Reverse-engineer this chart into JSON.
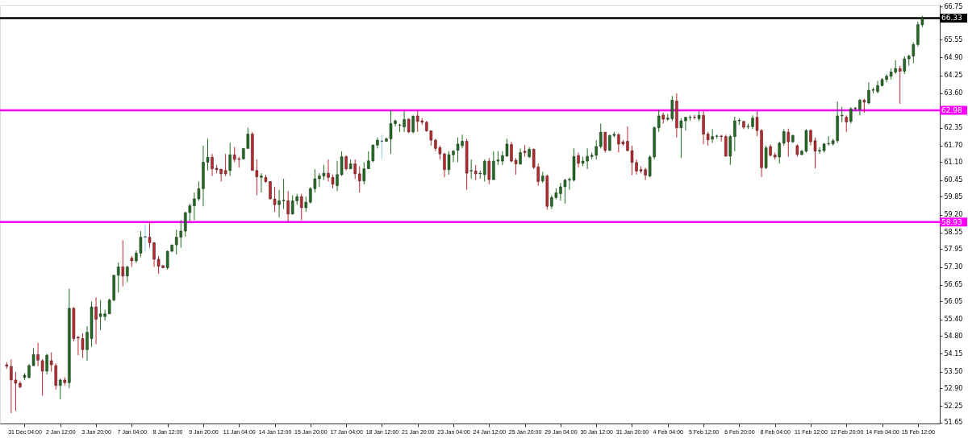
{
  "chart_data": {
    "type": "candlestick",
    "categories": [
      null,
      null,
      null,
      null,
      "31 Dec 04:00",
      null,
      null,
      null,
      null,
      null,
      null,
      null,
      "2 Jan 12:00",
      null,
      null,
      null,
      null,
      null,
      null,
      null,
      "3 Jan 20:00",
      null,
      null,
      null,
      null,
      null,
      null,
      null,
      "7 Jan 04:00",
      null,
      null,
      null,
      null,
      null,
      null,
      null,
      "8 Jan 12:00",
      null,
      null,
      null,
      null,
      null,
      null,
      null,
      "9 Jan 20:00",
      null,
      null,
      null,
      null,
      null,
      null,
      null,
      "11 Jan 04:00",
      null,
      null,
      null,
      null,
      null,
      null,
      null,
      "14 Jan 12:00",
      null,
      null,
      null,
      null,
      null,
      null,
      null,
      "15 Jan 20:00",
      null,
      null,
      null,
      null,
      null,
      null,
      null,
      "17 Jan 04:00",
      null,
      null,
      null,
      null,
      null,
      null,
      null,
      "18 Jan 12:00",
      null,
      null,
      null,
      null,
      null,
      null,
      null,
      "21 Jan 20:00",
      null,
      null,
      null,
      null,
      null,
      null,
      null,
      "23 Jan 04:00",
      null,
      null,
      null,
      null,
      null,
      null,
      null,
      "24 Jan 12:00",
      null,
      null,
      null,
      null,
      null,
      null,
      null,
      "25 Jan 20:00",
      null,
      null,
      null,
      null,
      null,
      null,
      null,
      "29 Jan 04:00",
      null,
      null,
      null,
      null,
      null,
      null,
      null,
      "30 Jan 12:00",
      null,
      null,
      null,
      null,
      null,
      null,
      null,
      "31 Jan 20:00",
      null,
      null,
      null,
      null,
      null,
      null,
      null,
      "4 Feb 04:00",
      null,
      null,
      null,
      null,
      null,
      null,
      null,
      "5 Feb 12:00",
      null,
      null,
      null,
      null,
      null,
      null,
      null,
      "6 Feb 20:00",
      null,
      null,
      null,
      null,
      null,
      null,
      null,
      "8 Feb 04:00",
      null,
      null,
      null,
      null,
      null,
      null,
      null,
      "11 Feb 12:00",
      null,
      null,
      null,
      null,
      null,
      null,
      null,
      "12 Feb 20:00",
      null,
      null,
      null,
      null,
      null,
      null,
      null,
      "14 Feb 04:00",
      null,
      null,
      null,
      null,
      null,
      null,
      null,
      "15 Feb 12:00",
      null
    ],
    "ohlc": [
      [
        53.75,
        53.85,
        53.6,
        53.7
      ],
      [
        53.69,
        53.95,
        52.0,
        53.2
      ],
      [
        53.2,
        53.5,
        52.08,
        53.08
      ],
      [
        53.08,
        53.15,
        52.9,
        52.95
      ],
      [
        53.29,
        53.45,
        53.2,
        53.37
      ],
      [
        53.29,
        53.78,
        53.25,
        53.72
      ],
      [
        53.72,
        54.35,
        53.7,
        54.12
      ],
      [
        54.12,
        54.55,
        53.7,
        53.92
      ],
      [
        53.9,
        53.95,
        52.63,
        53.52
      ],
      [
        53.52,
        54.15,
        53.4,
        54.1
      ],
      [
        53.9,
        54.2,
        53.5,
        53.75
      ],
      [
        53.72,
        53.8,
        52.85,
        53.0
      ],
      [
        53.0,
        53.25,
        52.5,
        53.2
      ],
      [
        53.2,
        53.3,
        53.0,
        53.1
      ],
      [
        53.1,
        56.51,
        52.9,
        55.8
      ],
      [
        55.8,
        55.85,
        54.6,
        54.7
      ],
      [
        54.75,
        54.8,
        54.1,
        54.72
      ],
      [
        54.7,
        54.9,
        54.0,
        54.3
      ],
      [
        54.3,
        55.15,
        53.9,
        54.93
      ],
      [
        54.7,
        56.05,
        54.4,
        55.85
      ],
      [
        55.85,
        56.2,
        54.5,
        55.4
      ],
      [
        55.5,
        56.1,
        55.0,
        55.6
      ],
      [
        55.5,
        55.75,
        55.35,
        55.6
      ],
      [
        55.6,
        56.15,
        55.6,
        56.1
      ],
      [
        56.1,
        57.0,
        56.05,
        57.0
      ],
      [
        57.0,
        57.46,
        56.37,
        57.3
      ],
      [
        57.3,
        58.27,
        56.6,
        56.97
      ],
      [
        56.97,
        57.35,
        56.75,
        57.3
      ],
      [
        57.62,
        57.7,
        57.3,
        57.52
      ],
      [
        57.52,
        57.9,
        57.45,
        57.8
      ],
      [
        57.8,
        58.6,
        57.65,
        58.38
      ],
      [
        58.38,
        58.85,
        57.85,
        58.4
      ],
      [
        58.38,
        58.93,
        58.0,
        58.18
      ],
      [
        58.18,
        58.2,
        57.3,
        57.58
      ],
      [
        57.58,
        57.7,
        57.05,
        57.32
      ],
      [
        57.35,
        57.35,
        57.25,
        57.27
      ],
      [
        57.27,
        57.9,
        57.2,
        57.87
      ],
      [
        57.87,
        58.1,
        57.85,
        58.1
      ],
      [
        58.1,
        58.65,
        57.75,
        58.38
      ],
      [
        58.38,
        59.0,
        58.0,
        58.6
      ],
      [
        58.6,
        59.3,
        58.4,
        59.27
      ],
      [
        59.27,
        59.6,
        58.95,
        59.52
      ],
      [
        59.52,
        60.0,
        59.0,
        59.77
      ],
      [
        59.77,
        60.4,
        59.7,
        60.14
      ],
      [
        60.14,
        61.7,
        59.5,
        61.1
      ],
      [
        61.1,
        61.95,
        60.8,
        61.28
      ],
      [
        61.28,
        61.4,
        60.6,
        60.86
      ],
      [
        60.88,
        61.0,
        60.7,
        60.83
      ],
      [
        60.85,
        60.85,
        60.4,
        60.68
      ],
      [
        60.8,
        61.4,
        60.6,
        60.68
      ],
      [
        60.8,
        61.8,
        60.6,
        61.37
      ],
      [
        61.37,
        61.65,
        61.1,
        61.2
      ],
      [
        61.22,
        61.3,
        60.9,
        61.2
      ],
      [
        61.22,
        61.6,
        61.2,
        61.6
      ],
      [
        61.6,
        62.35,
        61.6,
        62.12
      ],
      [
        62.12,
        62.2,
        60.8,
        60.8
      ],
      [
        60.8,
        61.2,
        59.9,
        60.57
      ],
      [
        60.55,
        60.7,
        60.0,
        60.6
      ],
      [
        60.55,
        60.65,
        60.35,
        60.4
      ],
      [
        60.4,
        60.4,
        59.75,
        59.77
      ],
      [
        59.77,
        60.2,
        59.3,
        59.56
      ],
      [
        59.56,
        60.1,
        59.1,
        59.7
      ],
      [
        59.7,
        60.5,
        59.4,
        59.72
      ],
      [
        59.7,
        60.05,
        58.95,
        59.22
      ],
      [
        59.22,
        59.9,
        59.2,
        59.7
      ],
      [
        59.7,
        59.95,
        59.55,
        59.85
      ],
      [
        59.85,
        59.95,
        59.0,
        59.45
      ],
      [
        59.45,
        59.85,
        59.3,
        59.65
      ],
      [
        59.65,
        60.2,
        59.6,
        60.14
      ],
      [
        60.14,
        60.85,
        60.0,
        60.5
      ],
      [
        60.5,
        60.7,
        60.2,
        60.6
      ],
      [
        60.6,
        61.0,
        60.45,
        60.7
      ],
      [
        60.7,
        61.2,
        60.4,
        60.55
      ],
      [
        60.55,
        60.65,
        60.15,
        60.3
      ],
      [
        60.25,
        61.15,
        60.05,
        60.65
      ],
      [
        60.65,
        61.5,
        60.6,
        61.3
      ],
      [
        61.3,
        61.35,
        60.8,
        60.86
      ],
      [
        60.86,
        61.2,
        60.85,
        61.04
      ],
      [
        61.04,
        61.2,
        60.5,
        60.68
      ],
      [
        60.68,
        60.95,
        60.0,
        60.42
      ],
      [
        60.42,
        61.1,
        60.3,
        60.86
      ],
      [
        60.86,
        61.5,
        60.85,
        61.15
      ],
      [
        61.15,
        61.75,
        61.1,
        61.72
      ],
      [
        61.72,
        62.0,
        61.6,
        61.9
      ],
      [
        61.86,
        62.1,
        61.2,
        61.87
      ],
      [
        61.86,
        62.0,
        61.85,
        61.95
      ],
      [
        61.95,
        63.0,
        61.4,
        62.5
      ],
      [
        62.5,
        62.65,
        62.4,
        62.6
      ],
      [
        62.44,
        62.5,
        62.2,
        62.45
      ],
      [
        62.38,
        62.95,
        62.2,
        62.65
      ],
      [
        62.66,
        62.7,
        62.15,
        62.2
      ],
      [
        62.2,
        62.8,
        62.15,
        62.77
      ],
      [
        62.78,
        62.95,
        62.2,
        62.58
      ],
      [
        62.6,
        62.7,
        62.45,
        62.55
      ],
      [
        62.55,
        62.6,
        62.2,
        62.24
      ],
      [
        62.24,
        62.24,
        61.7,
        61.9
      ],
      [
        61.9,
        61.95,
        61.5,
        61.6
      ],
      [
        61.63,
        61.7,
        61.2,
        61.4
      ],
      [
        61.4,
        61.45,
        60.55,
        60.83
      ],
      [
        60.83,
        61.5,
        60.65,
        61.37
      ],
      [
        61.37,
        61.55,
        61.1,
        61.5
      ],
      [
        61.53,
        62.0,
        61.1,
        61.76
      ],
      [
        61.7,
        62.1,
        61.6,
        61.86
      ],
      [
        61.86,
        61.95,
        60.1,
        60.7
      ],
      [
        60.78,
        61.2,
        60.5,
        60.8
      ],
      [
        60.78,
        61.0,
        60.45,
        60.68
      ],
      [
        60.68,
        60.8,
        60.5,
        60.7
      ],
      [
        60.65,
        61.2,
        60.4,
        61.14
      ],
      [
        61.14,
        61.25,
        60.3,
        60.47
      ],
      [
        60.47,
        61.5,
        60.45,
        61.14
      ],
      [
        61.14,
        61.5,
        61.0,
        61.18
      ],
      [
        61.14,
        61.5,
        61.0,
        61.34
      ],
      [
        61.32,
        61.95,
        61.3,
        61.76
      ],
      [
        61.74,
        61.85,
        61.1,
        61.14
      ],
      [
        61.17,
        61.25,
        60.65,
        61.04
      ],
      [
        61.04,
        61.6,
        61.0,
        61.45
      ],
      [
        61.5,
        61.72,
        61.3,
        61.45
      ],
      [
        61.3,
        61.65,
        61.25,
        61.57
      ],
      [
        61.57,
        61.6,
        60.85,
        60.91
      ],
      [
        60.93,
        61.05,
        60.25,
        60.4
      ],
      [
        60.42,
        60.75,
        60.35,
        60.6
      ],
      [
        60.6,
        60.65,
        59.38,
        59.5
      ],
      [
        59.5,
        59.9,
        59.4,
        59.82
      ],
      [
        59.82,
        60.15,
        59.75,
        59.99
      ],
      [
        59.96,
        60.35,
        59.7,
        60.21
      ],
      [
        60.21,
        60.5,
        59.6,
        60.45
      ],
      [
        60.45,
        60.55,
        60.1,
        60.48
      ],
      [
        60.45,
        61.6,
        60.4,
        61.31
      ],
      [
        61.34,
        61.45,
        60.9,
        61.06
      ],
      [
        61.06,
        61.3,
        60.95,
        61.14
      ],
      [
        61.14,
        61.6,
        60.85,
        61.31
      ],
      [
        61.31,
        61.45,
        61.2,
        61.35
      ],
      [
        61.35,
        61.9,
        61.2,
        61.67
      ],
      [
        61.67,
        62.5,
        61.6,
        62.19
      ],
      [
        62.19,
        62.2,
        61.45,
        61.53
      ],
      [
        61.53,
        62.1,
        61.5,
        62.07
      ],
      [
        62.07,
        62.2,
        62.0,
        62.11
      ],
      [
        62.1,
        62.15,
        61.45,
        61.76
      ],
      [
        61.84,
        61.9,
        61.7,
        61.76
      ],
      [
        61.86,
        62.4,
        61.5,
        61.52
      ],
      [
        61.52,
        61.7,
        60.63,
        61.09
      ],
      [
        61.09,
        61.2,
        60.65,
        60.78
      ],
      [
        60.83,
        60.95,
        60.7,
        60.78
      ],
      [
        60.83,
        60.9,
        60.45,
        60.63
      ],
      [
        60.6,
        61.35,
        60.55,
        61.29
      ],
      [
        61.29,
        62.4,
        61.2,
        62.35
      ],
      [
        62.35,
        63.0,
        62.2,
        62.78
      ],
      [
        62.81,
        62.9,
        62.5,
        62.66
      ],
      [
        62.66,
        62.85,
        62.6,
        62.7
      ],
      [
        62.68,
        63.5,
        62.6,
        63.35
      ],
      [
        63.32,
        63.6,
        62.0,
        62.35
      ],
      [
        62.35,
        62.7,
        61.25,
        62.6
      ],
      [
        62.6,
        62.75,
        62.25,
        62.73
      ],
      [
        62.72,
        62.8,
        62.6,
        62.73
      ],
      [
        62.73,
        62.82,
        62.65,
        62.72
      ],
      [
        62.68,
        62.95,
        62.6,
        62.8
      ],
      [
        62.8,
        62.95,
        61.75,
        62.12
      ],
      [
        62.12,
        62.2,
        61.7,
        61.91
      ],
      [
        61.94,
        62.3,
        61.8,
        62.03
      ],
      [
        62.04,
        62.1,
        61.95,
        62.05
      ],
      [
        62.05,
        62.1,
        61.85,
        62.03
      ],
      [
        62.03,
        62.1,
        61.3,
        61.32
      ],
      [
        61.32,
        62.1,
        61.0,
        62.03
      ],
      [
        62.03,
        62.75,
        61.5,
        62.6
      ],
      [
        62.6,
        62.7,
        62.45,
        62.62
      ],
      [
        62.58,
        62.6,
        62.3,
        62.37
      ],
      [
        62.39,
        62.5,
        62.3,
        62.4
      ],
      [
        62.39,
        62.8,
        62.3,
        62.7
      ],
      [
        62.73,
        62.95,
        62.05,
        62.25
      ],
      [
        62.25,
        62.3,
        60.57,
        60.9
      ],
      [
        60.9,
        61.7,
        60.85,
        61.62
      ],
      [
        61.67,
        61.75,
        61.3,
        61.35
      ],
      [
        61.36,
        61.45,
        61.2,
        61.29
      ],
      [
        61.29,
        61.85,
        61.05,
        61.79
      ],
      [
        61.79,
        62.3,
        61.7,
        62.21
      ],
      [
        62.19,
        62.32,
        61.3,
        61.84
      ],
      [
        61.84,
        62.1,
        61.8,
        62.07
      ],
      [
        61.7,
        61.75,
        61.3,
        61.38
      ],
      [
        61.38,
        61.55,
        61.35,
        61.5
      ],
      [
        61.5,
        62.3,
        61.45,
        62.25
      ],
      [
        62.25,
        62.3,
        61.7,
        61.84
      ],
      [
        61.88,
        62.0,
        60.88,
        61.5
      ],
      [
        61.5,
        61.65,
        61.4,
        61.53
      ],
      [
        61.52,
        61.8,
        61.45,
        61.76
      ],
      [
        61.77,
        62.05,
        61.7,
        61.78
      ],
      [
        61.77,
        61.95,
        61.7,
        61.88
      ],
      [
        61.88,
        63.3,
        61.8,
        62.78
      ],
      [
        62.78,
        63.1,
        62.55,
        62.8
      ],
      [
        62.73,
        62.8,
        62.2,
        62.56
      ],
      [
        62.58,
        63.1,
        62.5,
        63.04
      ],
      [
        63.04,
        63.1,
        62.95,
        63.06
      ],
      [
        63.02,
        63.4,
        62.8,
        63.35
      ],
      [
        63.35,
        63.4,
        62.9,
        63.28
      ],
      [
        63.25,
        64.0,
        63.2,
        63.71
      ],
      [
        63.71,
        63.8,
        63.6,
        63.73
      ],
      [
        63.66,
        64.05,
        63.6,
        63.88
      ],
      [
        63.88,
        64.15,
        63.85,
        64.1
      ],
      [
        64.1,
        64.3,
        64.0,
        64.22
      ],
      [
        64.22,
        64.5,
        64.1,
        64.37
      ],
      [
        64.37,
        64.8,
        64.3,
        64.5
      ],
      [
        64.5,
        64.6,
        63.22,
        64.4
      ],
      [
        64.4,
        64.95,
        64.3,
        64.85
      ],
      [
        64.85,
        65.0,
        64.6,
        64.95
      ],
      [
        64.95,
        65.45,
        64.7,
        65.37
      ],
      [
        65.37,
        66.2,
        65.3,
        66.09
      ],
      [
        66.09,
        66.41,
        66.0,
        66.33
      ]
    ],
    "colors": [
      "#c0272d",
      "#c0272d",
      "#c0272d",
      "#c0272d",
      "#1f6e1f",
      "#1f6e1f",
      "#1f6e1f",
      "#c0272d",
      "#c0272d",
      "#1f6e1f",
      "#c0272d",
      "#c0272d",
      "#1f6e1f",
      "#c0272d",
      "#1f6e1f",
      "#c0272d",
      "#c0272d",
      "#c0272d",
      "#1f6e1f",
      "#1f6e1f",
      "#c0272d",
      "#1f6e1f",
      "#1f6e1f",
      "#1f6e1f",
      "#1f6e1f",
      "#1f6e1f",
      "#c0272d",
      "#1f6e1f",
      "#c0272d",
      "#1f6e1f",
      "#1f6e1f",
      "#87cefa",
      "#c0272d",
      "#c0272d",
      "#c0272d",
      "#c0272d",
      "#1f6e1f",
      "#1f6e1f",
      "#1f6e1f",
      "#1f6e1f",
      "#1f6e1f",
      "#1f6e1f",
      "#1f6e1f",
      "#1f6e1f",
      "#1f6e1f",
      "#1f6e1f",
      "#c0272d",
      "#c0272d",
      "#c0272d",
      "#c0272d",
      "#1f6e1f",
      "#c0272d",
      "#c0272d",
      "#1f6e1f",
      "#1f6e1f",
      "#c0272d",
      "#c0272d",
      "#1f6e1f",
      "#c0272d",
      "#c0272d",
      "#c0272d",
      "#1f6e1f",
      "#1f6e1f",
      "#c0272d",
      "#1f6e1f",
      "#1f6e1f",
      "#c0272d",
      "#1f6e1f",
      "#1f6e1f",
      "#1f6e1f",
      "#1f6e1f",
      "#1f6e1f",
      "#c0272d",
      "#c0272d",
      "#1f6e1f",
      "#1f6e1f",
      "#c0272d",
      "#1f6e1f",
      "#c0272d",
      "#c0272d",
      "#1f6e1f",
      "#1f6e1f",
      "#1f6e1f",
      "#1f6e1f",
      "#87cefa",
      "#1f6e1f",
      "#1f6e1f",
      "#1f6e1f",
      "#1f6e1f",
      "#1f6e1f",
      "#c0272d",
      "#1f6e1f",
      "#c0272d",
      "#c0272d",
      "#c0272d",
      "#c0272d",
      "#c0272d",
      "#c0272d",
      "#c0272d",
      "#1f6e1f",
      "#1f6e1f",
      "#1f6e1f",
      "#1f6e1f",
      "#c0272d",
      "#1f6e1f",
      "#c0272d",
      "#1f6e1f",
      "#1f6e1f",
      "#c0272d",
      "#1f6e1f",
      "#1f6e1f",
      "#1f6e1f",
      "#1f6e1f",
      "#c0272d",
      "#c0272d",
      "#1f6e1f",
      "#c0272d",
      "#1f6e1f",
      "#c0272d",
      "#c0272d",
      "#1f6e1f",
      "#c0272d",
      "#1f6e1f",
      "#1f6e1f",
      "#1f6e1f",
      "#1f6e1f",
      "#1f6e1f",
      "#1f6e1f",
      "#c0272d",
      "#1f6e1f",
      "#1f6e1f",
      "#1f6e1f",
      "#1f6e1f",
      "#1f6e1f",
      "#c0272d",
      "#1f6e1f",
      "#1f6e1f",
      "#c0272d",
      "#c0272d",
      "#c0272d",
      "#c0272d",
      "#c0272d",
      "#c0272d",
      "#c0272d",
      "#1f6e1f",
      "#1f6e1f",
      "#1f6e1f",
      "#c0272d",
      "#1f6e1f",
      "#1f6e1f",
      "#c0272d",
      "#1f6e1f",
      "#1f6e1f",
      "#1f6e1f",
      "#c0272d",
      "#1f6e1f",
      "#c0272d",
      "#c0272d",
      "#1f6e1f",
      "#1f6e1f",
      "#c0272d",
      "#c0272d",
      "#1f6e1f",
      "#1f6e1f",
      "#1f6e1f",
      "#c0272d",
      "#1f6e1f",
      "#1f6e1f",
      "#c0272d",
      "#c0272d",
      "#1f6e1f",
      "#c0272d",
      "#c0272d",
      "#1f6e1f",
      "#1f6e1f",
      "#c0272d",
      "#1f6e1f",
      "#c0272d",
      "#1f6e1f",
      "#1f6e1f",
      "#c0272d",
      "#c0272d",
      "#1f6e1f",
      "#1f6e1f",
      "#1f6e1f",
      "#1f6e1f",
      "#1f6e1f",
      "#1f6e1f",
      "#c0272d",
      "#1f6e1f",
      "#1f6e1f",
      "#1f6e1f",
      "#c0272d",
      "#1f6e1f",
      "#1f6e1f",
      "#1f6e1f",
      "#1f6e1f",
      "#1f6e1f",
      "#1f6e1f",
      "#1f6e1f",
      "#c0272d",
      "#1f6e1f",
      "#1f6e1f",
      "#1f6e1f",
      "#1f6e1f",
      "#1f6e1f"
    ],
    "ylim": [
      51.62,
      66.81
    ],
    "yticks": [
      {
        "value": 66.75,
        "label": "66.75"
      },
      {
        "value": 65.55,
        "label": "65.55"
      },
      {
        "value": 64.9,
        "label": "64.90"
      },
      {
        "value": 64.25,
        "label": "64.25"
      },
      {
        "value": 63.6,
        "label": "63.60"
      },
      {
        "value": 62.35,
        "label": "62.35"
      },
      {
        "value": 61.7,
        "label": "61.70"
      },
      {
        "value": 61.1,
        "label": "61.10"
      },
      {
        "value": 60.45,
        "label": "60.45"
      },
      {
        "value": 59.85,
        "label": "59.85"
      },
      {
        "value": 59.2,
        "label": "59.20"
      },
      {
        "value": 58.55,
        "label": "58.55"
      },
      {
        "value": 57.95,
        "label": "57.95"
      },
      {
        "value": 57.3,
        "label": "57.30"
      },
      {
        "value": 56.65,
        "label": "56.65"
      },
      {
        "value": 56.05,
        "label": "56.05"
      },
      {
        "value": 55.4,
        "label": "55.40"
      },
      {
        "value": 54.8,
        "label": "54.80"
      },
      {
        "value": 54.15,
        "label": "54.15"
      },
      {
        "value": 53.5,
        "label": "53.50"
      },
      {
        "value": 52.9,
        "label": "52.90"
      },
      {
        "value": 52.25,
        "label": "52.25"
      },
      {
        "value": 51.65,
        "label": "51.65"
      }
    ],
    "ref_lines": [
      {
        "axis": "y",
        "value": 66.33,
        "label": "66.33",
        "color": "#000000"
      },
      {
        "axis": "y",
        "value": 62.98,
        "label": "62.98",
        "color": "#ff00ff"
      },
      {
        "axis": "y",
        "value": 58.93,
        "label": "58.93",
        "color": "#ff00ff"
      }
    ],
    "grid": false
  }
}
